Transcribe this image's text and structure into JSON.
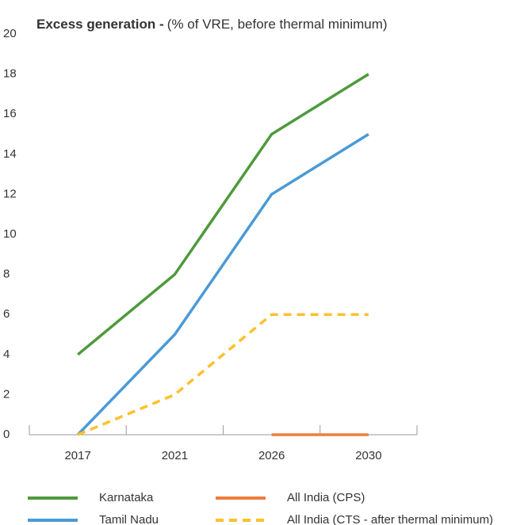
{
  "chart_data": {
    "type": "line",
    "title": "Excess generation -",
    "subtitle": "(% of VRE, before thermal minimum)",
    "categories": [
      "2017",
      "2021",
      "2026",
      "2030"
    ],
    "series": [
      {
        "name": "Karnataka",
        "color": "#4e9a3c",
        "dash": false,
        "values": [
          4,
          8,
          15,
          18
        ]
      },
      {
        "name": "Tamil Nadu",
        "color": "#4b9ad6",
        "dash": false,
        "values": [
          0,
          5,
          12,
          15
        ]
      },
      {
        "name": "All India (CPS)",
        "color": "#ef7d3c",
        "dash": false,
        "values": [
          null,
          null,
          0,
          0
        ]
      },
      {
        "name": "All India (CTS - after thermal minimum)",
        "color": "#fbc12e",
        "dash": true,
        "values": [
          0,
          2,
          6,
          6
        ]
      }
    ],
    "ylim": [
      0,
      20
    ],
    "yticks": [
      0,
      2,
      4,
      6,
      8,
      10,
      12,
      14,
      16,
      18,
      20
    ],
    "grid": false
  }
}
